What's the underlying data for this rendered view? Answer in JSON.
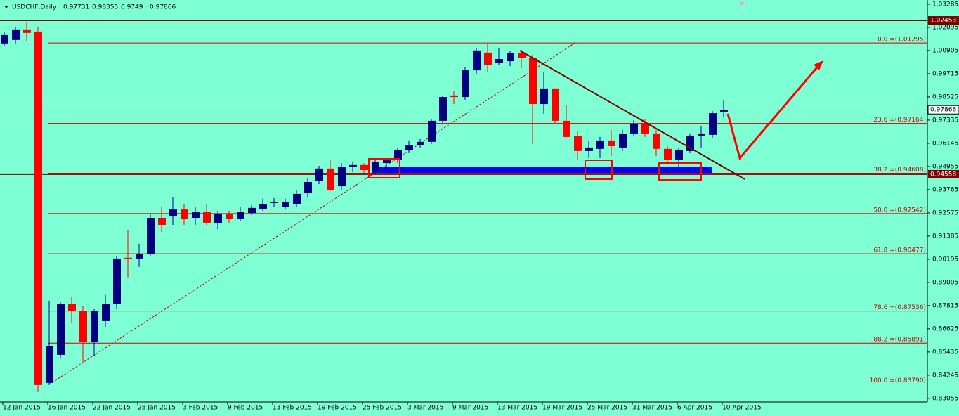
{
  "chart_data": {
    "type": "candlestick",
    "title": "USDCHF,Daily",
    "categories": [
      "12 Jan 2015",
      null,
      null,
      null,
      "16 Jan 2015",
      null,
      null,
      null,
      "22 Jan 2015",
      null,
      null,
      null,
      "28 Jan 2015",
      null,
      null,
      null,
      "3 Feb 2015",
      null,
      null,
      null,
      "9 Feb 2015",
      null,
      null,
      null,
      "13 Feb 2015",
      null,
      null,
      null,
      "19 Feb 2015",
      null,
      null,
      null,
      "25 Feb 2015",
      null,
      null,
      null,
      "3 Mar 2015",
      null,
      null,
      null,
      "9 Mar 2015",
      null,
      null,
      null,
      "13 Mar 2015",
      null,
      null,
      null,
      "19 Mar 2015",
      null,
      null,
      null,
      "25 Mar 2015",
      null,
      null,
      null,
      "31 Mar 2015",
      null,
      null,
      null,
      "6 Apr 2015",
      null,
      null,
      null,
      "10 Apr 2015"
    ],
    "open": [
      1.0127,
      1.0145,
      1.0199,
      1.0188,
      0.8385,
      0.8529,
      0.8789,
      0.8753,
      0.8594,
      0.8702,
      0.8789,
      0.9027,
      0.9023,
      0.9045,
      0.9232,
      0.9239,
      0.9275,
      0.9232,
      0.9261,
      0.9203,
      0.925,
      0.9225,
      0.9257,
      0.9279,
      0.9308,
      0.9286,
      0.9304,
      0.9358,
      0.942,
      0.9485,
      0.9394,
      0.9495,
      0.9503,
      0.9474,
      0.9513,
      0.9528,
      0.9578,
      0.9604,
      0.9622,
      0.973,
      0.986,
      0.9852,
      0.9989,
      1.008,
      1.0029,
      1.0036,
      1.0076,
      1.0054,
      0.9816,
      0.9896,
      0.973,
      0.9654,
      0.9575,
      0.9586,
      0.9629,
      0.9593,
      0.9665,
      0.9719,
      0.9665,
      0.9586,
      0.9528,
      0.9575,
      0.9654,
      0.9658,
      0.97731
    ],
    "high": [
      1.0188,
      1.0213,
      1.0235,
      1.0213,
      0.8807,
      0.8799,
      0.8828,
      0.8781,
      0.8763,
      0.8836,
      0.9034,
      0.9167,
      0.9099,
      0.925,
      0.9286,
      0.934,
      0.9304,
      0.9286,
      0.9304,
      0.9268,
      0.9268,
      0.9286,
      0.9297,
      0.933,
      0.9333,
      0.933,
      0.9376,
      0.9438,
      0.9499,
      0.9528,
      0.9513,
      0.9521,
      0.9513,
      0.9531,
      0.9539,
      0.9593,
      0.9629,
      0.9636,
      0.9737,
      0.986,
      0.9881,
      1.0004,
      1.0105,
      1.0127,
      1.0105,
      1.0087,
      1.0094,
      1.0069,
      0.9979,
      0.9896,
      0.9809,
      0.9676,
      0.9629,
      0.9647,
      0.9683,
      0.9683,
      0.9733,
      0.9737,
      0.9683,
      0.96,
      0.9593,
      0.9665,
      0.9701,
      0.978,
      0.98355
    ],
    "low": [
      1.0112,
      1.0127,
      1.0141,
      0.8338,
      0.8374,
      0.8511,
      0.8691,
      0.8493,
      0.8522,
      0.8673,
      0.8763,
      0.8926,
      0.898,
      0.9034,
      0.916,
      0.9196,
      0.9196,
      0.9196,
      0.9196,
      0.9174,
      0.9203,
      0.9214,
      0.9247,
      0.9268,
      0.9286,
      0.9279,
      0.9286,
      0.934,
      0.9405,
      0.9369,
      0.9376,
      0.9467,
      0.9463,
      0.9456,
      0.9485,
      0.9513,
      0.9564,
      0.9593,
      0.9611,
      0.9719,
      0.9816,
      0.9838,
      0.9971,
      0.9982,
      1.0018,
      1.0011,
      1.0,
      0.9611,
      0.9766,
      0.9719,
      0.964,
      0.9528,
      0.9539,
      0.9539,
      0.955,
      0.9575,
      0.965,
      0.9647,
      0.955,
      0.9506,
      0.9492,
      0.9564,
      0.9593,
      0.9643,
      0.9749
    ],
    "close": [
      1.017,
      1.0199,
      1.0181,
      0.8374,
      0.8572,
      0.8789,
      0.8753,
      0.8594,
      0.8753,
      0.8789,
      0.9023,
      0.9023,
      0.9045,
      0.9232,
      0.9196,
      0.9275,
      0.9225,
      0.9261,
      0.9207,
      0.925,
      0.9225,
      0.9261,
      0.9283,
      0.9304,
      0.9315,
      0.9315,
      0.9355,
      0.9416,
      0.9485,
      0.9376,
      0.9495,
      0.9503,
      0.9477,
      0.9517,
      0.9528,
      0.9582,
      0.9607,
      0.9622,
      0.973,
      0.9852,
      0.9852,
      0.9989,
      1.0091,
      1.0018,
      1.0047,
      1.0076,
      1.0054,
      0.9816,
      0.9896,
      0.973,
      0.9647,
      0.9575,
      0.9593,
      0.9629,
      0.96,
      0.9665,
      0.9715,
      0.9665,
      0.9586,
      0.9528,
      0.9582,
      0.9654,
      0.9665,
      0.9769,
      0.97866
    ],
    "up_color": "#000080",
    "down_color": "#ff0000",
    "ylim": [
      0.8287,
      1.035
    ],
    "yticks": [
      1.03285,
      1.02095,
      1.00905,
      0.99715,
      0.98525,
      0.97335,
      0.96145,
      0.94955,
      0.93765,
      0.92575,
      0.91385,
      0.90195,
      0.89005,
      0.87815,
      0.86625,
      0.85435,
      0.84245,
      0.83055
    ],
    "hlines": [
      1.02453,
      0.94558
    ],
    "fib_levels": [
      {
        "value": 1.01295,
        "label": "0.0 =(1.01295)"
      },
      {
        "value": 0.97164,
        "label": "23.6 =(0.97164)"
      },
      {
        "value": 0.94608,
        "label": "38.2 =(0.94608)"
      },
      {
        "value": 0.92542,
        "label": "50.0 =(0.92542)"
      },
      {
        "value": 0.90477,
        "label": "61.8 =(0.90477)"
      },
      {
        "value": 0.87536,
        "label": "78.6 =(0.87536)"
      },
      {
        "value": 0.85891,
        "label": "88.2 =(0.85891)"
      },
      {
        "value": 0.8379,
        "label": "100.0 =(0.83790)"
      }
    ]
  }
}
